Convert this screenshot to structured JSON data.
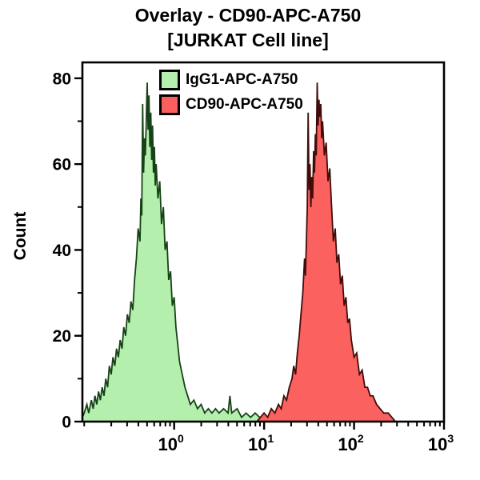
{
  "window": {
    "background": "#ffffff",
    "text_color": "#000000"
  },
  "title": {
    "line1": "Overlay - CD90-APC-A750",
    "line2": "[JURKAT Cell line]"
  },
  "legend": {
    "position": "top-left-inside",
    "items": [
      {
        "label": "IgG1-APC-A750",
        "swatch_color": "#b4efae",
        "border_color": "#000000"
      },
      {
        "label": "CD90-APC-A750",
        "swatch_color": "#fb5f5d",
        "border_color": "#000000"
      }
    ]
  },
  "chart_data": {
    "type": "area",
    "subtype": "flow-cytometry-histogram-overlay",
    "title": "Overlay - CD90-APC-A750 [JURKAT Cell line]",
    "xlabel": "",
    "ylabel": "Count",
    "grid": false,
    "x_scale": "log10",
    "x_log_min": -1.02,
    "x_log_max": 3,
    "ylim": [
      0,
      80
    ],
    "y_max_frame": 83.7,
    "y_major_ticks": [
      0,
      20,
      40,
      60,
      80
    ],
    "y_minor_ticks": [
      10,
      30,
      50,
      70
    ],
    "x_major_ticks": [
      {
        "log": 0,
        "base": "10",
        "exp": "0"
      },
      {
        "log": 1,
        "base": "10",
        "exp": "1"
      },
      {
        "log": 2,
        "base": "10",
        "exp": "2"
      },
      {
        "log": 3,
        "base": "10",
        "exp": "3"
      }
    ],
    "x_minor_decades": [
      -1,
      0,
      1,
      2
    ],
    "frame_color": "#000000",
    "series": [
      {
        "name": "IgG1-APC-A750",
        "fill": "#b4efae",
        "edge": "#174217",
        "peak_x_value": 0.5,
        "peak_count": 79,
        "points": [
          [
            -1.02,
            1
          ],
          [
            -1.0,
            2
          ],
          [
            -0.97,
            4
          ],
          [
            -0.95,
            2
          ],
          [
            -0.92,
            5
          ],
          [
            -0.9,
            3
          ],
          [
            -0.88,
            6
          ],
          [
            -0.86,
            4
          ],
          [
            -0.84,
            7
          ],
          [
            -0.82,
            5
          ],
          [
            -0.8,
            8
          ],
          [
            -0.78,
            6
          ],
          [
            -0.76,
            10
          ],
          [
            -0.74,
            8
          ],
          [
            -0.72,
            13
          ],
          [
            -0.7,
            11
          ],
          [
            -0.68,
            15
          ],
          [
            -0.66,
            13
          ],
          [
            -0.64,
            17
          ],
          [
            -0.62,
            15
          ],
          [
            -0.6,
            19
          ],
          [
            -0.58,
            17
          ],
          [
            -0.56,
            22
          ],
          [
            -0.54,
            20
          ],
          [
            -0.52,
            25
          ],
          [
            -0.5,
            23
          ],
          [
            -0.48,
            28
          ],
          [
            -0.46,
            26
          ],
          [
            -0.44,
            33
          ],
          [
            -0.42,
            38
          ],
          [
            -0.4,
            45
          ],
          [
            -0.38,
            42
          ],
          [
            -0.37,
            52
          ],
          [
            -0.36,
            48
          ],
          [
            -0.35,
            74
          ],
          [
            -0.34,
            58
          ],
          [
            -0.33,
            66
          ],
          [
            -0.32,
            62
          ],
          [
            -0.31,
            70
          ],
          [
            -0.3,
            79
          ],
          [
            -0.29,
            68
          ],
          [
            -0.28,
            76
          ],
          [
            -0.27,
            64
          ],
          [
            -0.26,
            72
          ],
          [
            -0.25,
            61
          ],
          [
            -0.24,
            69
          ],
          [
            -0.23,
            58
          ],
          [
            -0.22,
            64
          ],
          [
            -0.21,
            55
          ],
          [
            -0.2,
            60
          ],
          [
            -0.18,
            52
          ],
          [
            -0.16,
            56
          ],
          [
            -0.14,
            46
          ],
          [
            -0.12,
            50
          ],
          [
            -0.1,
            40
          ],
          [
            -0.08,
            42
          ],
          [
            -0.06,
            33
          ],
          [
            -0.04,
            35
          ],
          [
            -0.02,
            27
          ],
          [
            0.0,
            29
          ],
          [
            0.02,
            22
          ],
          [
            0.04,
            18
          ],
          [
            0.06,
            14
          ],
          [
            0.09,
            11
          ],
          [
            0.12,
            8
          ],
          [
            0.15,
            6
          ],
          [
            0.18,
            4
          ],
          [
            0.22,
            5
          ],
          [
            0.26,
            3
          ],
          [
            0.3,
            4
          ],
          [
            0.34,
            2
          ],
          [
            0.38,
            3
          ],
          [
            0.42,
            2
          ],
          [
            0.46,
            3
          ],
          [
            0.5,
            2
          ],
          [
            0.55,
            3
          ],
          [
            0.6,
            2
          ],
          [
            0.62,
            6
          ],
          [
            0.64,
            2
          ],
          [
            0.7,
            3
          ],
          [
            0.75,
            1
          ],
          [
            0.8,
            2
          ],
          [
            0.85,
            1
          ],
          [
            0.9,
            2
          ],
          [
            0.95,
            1
          ],
          [
            1.0,
            1
          ],
          [
            1.05,
            0
          ]
        ]
      },
      {
        "name": "CD90-APC-A750",
        "fill": "#fb615e",
        "edge": "#400d0b",
        "peak_x_value": 39,
        "peak_count": 79,
        "points": [
          [
            0.92,
            0
          ],
          [
            0.96,
            1
          ],
          [
            1.0,
            2
          ],
          [
            1.04,
            1
          ],
          [
            1.08,
            3
          ],
          [
            1.12,
            2
          ],
          [
            1.16,
            4
          ],
          [
            1.19,
            3
          ],
          [
            1.22,
            6
          ],
          [
            1.25,
            5
          ],
          [
            1.28,
            8
          ],
          [
            1.31,
            10
          ],
          [
            1.33,
            13
          ],
          [
            1.35,
            11
          ],
          [
            1.37,
            16
          ],
          [
            1.39,
            20
          ],
          [
            1.41,
            25
          ],
          [
            1.43,
            30
          ],
          [
            1.45,
            38
          ],
          [
            1.46,
            34
          ],
          [
            1.47,
            42
          ],
          [
            1.48,
            50
          ],
          [
            1.49,
            72
          ],
          [
            1.5,
            54
          ],
          [
            1.51,
            60
          ],
          [
            1.52,
            50
          ],
          [
            1.53,
            57
          ],
          [
            1.54,
            52
          ],
          [
            1.55,
            63
          ],
          [
            1.56,
            58
          ],
          [
            1.57,
            67
          ],
          [
            1.58,
            62
          ],
          [
            1.59,
            79
          ],
          [
            1.6,
            69
          ],
          [
            1.61,
            75
          ],
          [
            1.62,
            71
          ],
          [
            1.63,
            74
          ],
          [
            1.64,
            66
          ],
          [
            1.65,
            70
          ],
          [
            1.67,
            62
          ],
          [
            1.69,
            65
          ],
          [
            1.71,
            56
          ],
          [
            1.73,
            59
          ],
          [
            1.75,
            50
          ],
          [
            1.77,
            42
          ],
          [
            1.79,
            45
          ],
          [
            1.81,
            37
          ],
          [
            1.83,
            39
          ],
          [
            1.85,
            32
          ],
          [
            1.87,
            34
          ],
          [
            1.89,
            27
          ],
          [
            1.91,
            29
          ],
          [
            1.93,
            23
          ],
          [
            1.95,
            24
          ],
          [
            1.97,
            19
          ],
          [
            2.0,
            15
          ],
          [
            2.03,
            16
          ],
          [
            2.06,
            11
          ],
          [
            2.09,
            12
          ],
          [
            2.12,
            8
          ],
          [
            2.15,
            8
          ],
          [
            2.18,
            6
          ],
          [
            2.21,
            6
          ],
          [
            2.25,
            4
          ],
          [
            2.29,
            3
          ],
          [
            2.33,
            2
          ],
          [
            2.38,
            2
          ],
          [
            2.42,
            1
          ],
          [
            2.46,
            0
          ]
        ]
      }
    ]
  }
}
